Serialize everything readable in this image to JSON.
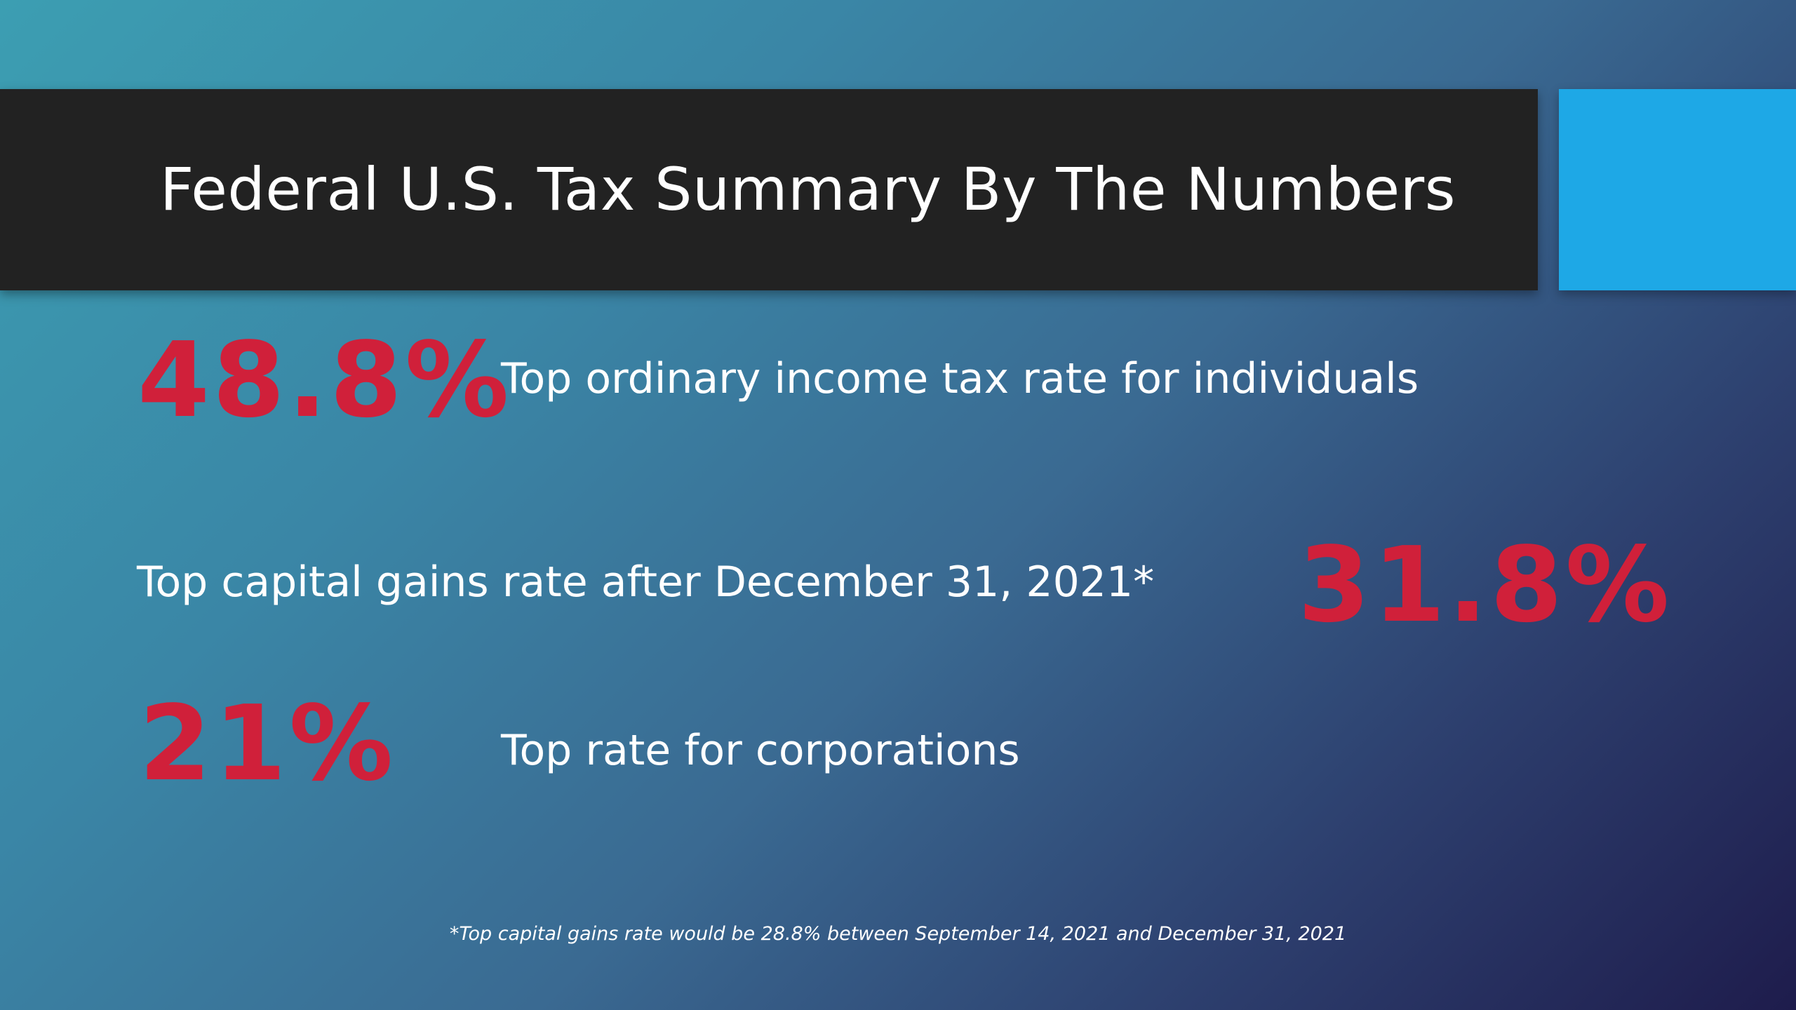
{
  "title": "Federal U.S. Tax Summary By The Numbers",
  "stats": [
    {
      "value": "48.8%",
      "label": "Top ordinary income tax rate for individuals"
    },
    {
      "value": "31.8%",
      "label": "Top capital gains rate after December 31, 2021*"
    },
    {
      "value": "21%",
      "label": "Top rate for corporations"
    }
  ],
  "footnote": "*Top capital gains rate would be 28.8% between September 14, 2021 and December 31, 2021",
  "colors": {
    "title_bar": "#222222",
    "accent_box": "#1ea8e6",
    "stat_value": "#d0203a",
    "text": "#ffffff"
  }
}
